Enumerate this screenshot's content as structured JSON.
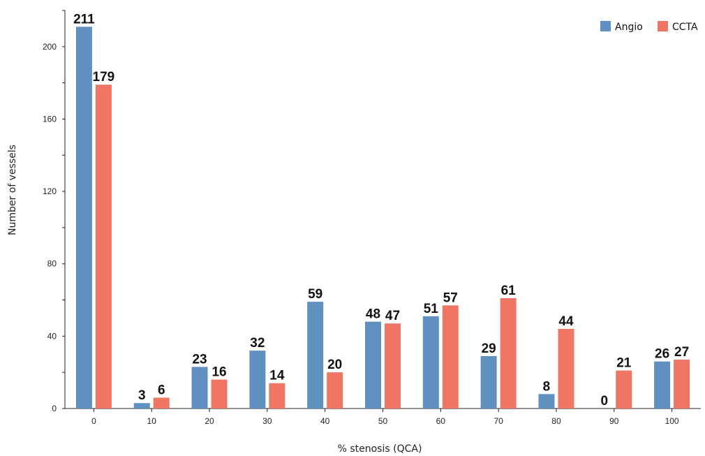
{
  "chart_data": {
    "type": "bar",
    "title": "",
    "xlabel": "% stenosis (QCA)",
    "ylabel": "Number of vessels",
    "categories": [
      "0",
      "10",
      "20",
      "30",
      "40",
      "50",
      "60",
      "70",
      "80",
      "90",
      "100"
    ],
    "series": [
      {
        "name": "Angio",
        "color": "#6090c0",
        "values": [
          211,
          3,
          23,
          32,
          59,
          48,
          51,
          29,
          8,
          0,
          26
        ]
      },
      {
        "name": "CCTA",
        "color": "#ef7565",
        "values": [
          179,
          6,
          16,
          14,
          20,
          47,
          57,
          61,
          44,
          21,
          27
        ]
      }
    ],
    "ylim": [
      0,
      220
    ],
    "yticks": [
      0,
      40,
      80,
      120,
      160,
      200
    ],
    "grid": false,
    "legend_position": "top-right",
    "data_labels": true
  }
}
